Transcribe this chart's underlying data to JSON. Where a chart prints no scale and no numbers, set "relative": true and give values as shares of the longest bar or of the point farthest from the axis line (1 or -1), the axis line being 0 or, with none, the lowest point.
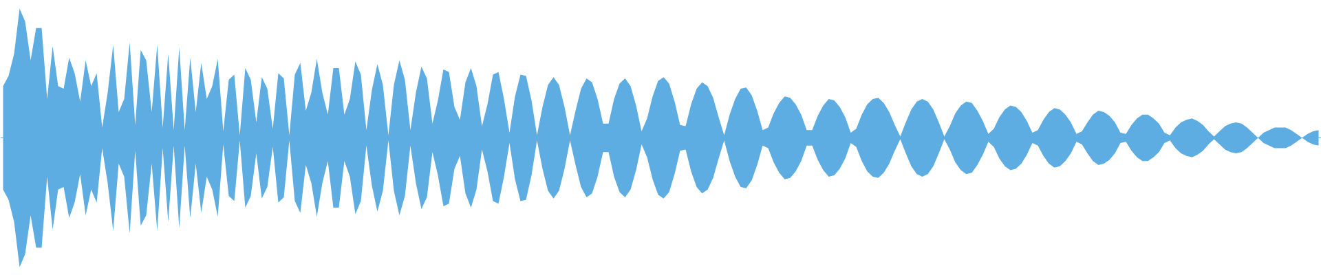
{
  "chart_data": {
    "type": "area",
    "relative": true,
    "categories": [
      null,
      null,
      null,
      null,
      null,
      null,
      null,
      null,
      null,
      null,
      null,
      null,
      null,
      null,
      null,
      null,
      null,
      null,
      null,
      null,
      null,
      null,
      null,
      null,
      null,
      null,
      null,
      null,
      null,
      null,
      null,
      null,
      null,
      null,
      null,
      null,
      null,
      null,
      null,
      null,
      null,
      null,
      null,
      null,
      null,
      null,
      null,
      null,
      null,
      null,
      null,
      null,
      null,
      null,
      null,
      null,
      null,
      null,
      null,
      null,
      null,
      null,
      null,
      null,
      null,
      null,
      null,
      null,
      null,
      null,
      null,
      null,
      null,
      null,
      null,
      null,
      null,
      null,
      null,
      null,
      null,
      null,
      null,
      null,
      null,
      null,
      null,
      null,
      null,
      null,
      null,
      null,
      null,
      null,
      null,
      null,
      null,
      null,
      null,
      null,
      null,
      null,
      null,
      null,
      null,
      null,
      null,
      null,
      null,
      null,
      null,
      null,
      null,
      null,
      null,
      null,
      null,
      null,
      null,
      null,
      null,
      null,
      null,
      null,
      null,
      null,
      null,
      null,
      null,
      null,
      null,
      null,
      null,
      null,
      null,
      null,
      null,
      null,
      null,
      null,
      null,
      null,
      null,
      null,
      null,
      null,
      null,
      null,
      null,
      null,
      null,
      null,
      null,
      null,
      null,
      null,
      null,
      null,
      null,
      null,
      null,
      null,
      null,
      null,
      null,
      null,
      null,
      null,
      null,
      null,
      null,
      null,
      null,
      null,
      null,
      null,
      null,
      null,
      null,
      null,
      null,
      null,
      null,
      null,
      null,
      null,
      null,
      null,
      null,
      null,
      null,
      null,
      null,
      null,
      null,
      null,
      null,
      null,
      null,
      null,
      null,
      null,
      null,
      null,
      null,
      null,
      null,
      null,
      null,
      null,
      null,
      null,
      null,
      null,
      null,
      null,
      null,
      null,
      null,
      null,
      null,
      null,
      null,
      null,
      null,
      null,
      null,
      null,
      null,
      null,
      null,
      null,
      null,
      null,
      null,
      null,
      null,
      null,
      null,
      null
    ],
    "ref_lines": [
      {
        "axis": "y",
        "value": 0,
        "color": "#5dade2"
      }
    ],
    "series": [
      {
        "color": "#5dade2",
        "values": [
          0.4,
          0.48,
          0.65,
          1,
          0.9,
          0.6,
          0.85,
          0.85,
          0.3,
          0.71,
          0.4,
          0.38,
          0.62,
          0.5,
          0.28,
          0.6,
          0.4,
          0.5,
          0.08,
          0.35,
          0.72,
          0.2,
          0.3,
          0.74,
          0.1,
          0.68,
          0.6,
          0.2,
          0.72,
          0.08,
          0.65,
          0.06,
          0.7,
          0.06,
          0.62,
          0.2,
          0.58,
          0.3,
          0.4,
          0.61,
          0.05,
          0.45,
          0.49,
          0.02,
          0.54,
          0.45,
          0.12,
          0.47,
          0.38,
          0.07,
          0.5,
          0.46,
          0.02,
          0.49,
          0.58,
          0.21,
          0.35,
          0.61,
          0.35,
          0.18,
          0.54,
          0.54,
          0.18,
          0.3,
          0.59,
          0.49,
          0.06,
          0.37,
          0.57,
          0.41,
          0.02,
          0.41,
          0.6,
          0.45,
          0.06,
          0.35,
          0.55,
          0.46,
          0.11,
          0.29,
          0.53,
          0.51,
          0.24,
          0.14,
          0.43,
          0.54,
          0.4,
          0.09,
          0.26,
          0.49,
          0.51,
          0.3,
          0.04,
          0.32,
          0.49,
          0.48,
          0.29,
          0.02,
          0.24,
          0.41,
          0.47,
          0.41,
          0.24,
          0.02,
          0.21,
          0.38,
          0.46,
          0.43,
          0.3,
          0.11,
          0.11,
          0.3,
          0.42,
          0.46,
          0.4,
          0.25,
          0.05,
          0.15,
          0.32,
          0.44,
          0.47,
          0.42,
          0.28,
          0.1,
          0.09,
          0.26,
          0.38,
          0.43,
          0.4,
          0.31,
          0.16,
          0.02,
          0.18,
          0.3,
          0.38,
          0.39,
          0.33,
          0.21,
          0.06,
          0.08,
          0.19,
          0.27,
          0.32,
          0.31,
          0.26,
          0.18,
          0.06,
          0.06,
          0.17,
          0.25,
          0.3,
          0.29,
          0.24,
          0.16,
          0.04,
          0.07,
          0.18,
          0.26,
          0.3,
          0.31,
          0.27,
          0.2,
          0.1,
          0.01,
          0.12,
          0.22,
          0.28,
          0.3,
          0.28,
          0.22,
          0.12,
          0.01,
          0.09,
          0.19,
          0.25,
          0.28,
          0.27,
          0.21,
          0.13,
          0.03,
          0.07,
          0.16,
          0.22,
          0.25,
          0.24,
          0.2,
          0.13,
          0.04,
          0.06,
          0.14,
          0.2,
          0.23,
          0.22,
          0.18,
          0.12,
          0.03,
          0.05,
          0.12,
          0.18,
          0.21,
          0.2,
          0.17,
          0.12,
          0.04,
          0.03,
          0.1,
          0.15,
          0.18,
          0.18,
          0.15,
          0.11,
          0.04,
          0.02,
          0.08,
          0.12,
          0.14,
          0.15,
          0.13,
          0.1,
          0.05,
          0.01,
          0.05,
          0.09,
          0.11,
          0.12,
          0.11,
          0.08,
          0.04,
          0,
          0.04,
          0.06,
          0.08,
          0.08,
          0.08,
          0.06,
          0.03,
          0,
          0.03,
          0.05,
          0.06
        ]
      },
      {
        "color": "#5dade2",
        "values": [
          -0.4,
          -0.48,
          -0.65,
          -1,
          -0.9,
          -0.6,
          -0.85,
          -0.85,
          -0.3,
          -0.71,
          -0.4,
          -0.38,
          -0.62,
          -0.5,
          -0.28,
          -0.6,
          -0.4,
          -0.5,
          -0.08,
          -0.35,
          -0.72,
          -0.2,
          -0.3,
          -0.74,
          -0.1,
          -0.68,
          -0.6,
          -0.2,
          -0.72,
          -0.08,
          -0.65,
          -0.06,
          -0.7,
          -0.06,
          -0.62,
          -0.2,
          -0.58,
          -0.3,
          -0.4,
          -0.61,
          -0.05,
          -0.45,
          -0.49,
          -0.02,
          -0.54,
          -0.45,
          -0.12,
          -0.47,
          -0.38,
          -0.07,
          -0.5,
          -0.46,
          -0.02,
          -0.49,
          -0.58,
          -0.21,
          -0.35,
          -0.61,
          -0.35,
          -0.18,
          -0.54,
          -0.54,
          -0.18,
          -0.3,
          -0.59,
          -0.49,
          -0.06,
          -0.37,
          -0.57,
          -0.41,
          -0.02,
          -0.41,
          -0.6,
          -0.45,
          -0.06,
          -0.35,
          -0.55,
          -0.46,
          -0.11,
          -0.29,
          -0.53,
          -0.51,
          -0.24,
          -0.14,
          -0.43,
          -0.54,
          -0.4,
          -0.09,
          -0.26,
          -0.49,
          -0.51,
          -0.3,
          -0.04,
          -0.32,
          -0.49,
          -0.48,
          -0.29,
          -0.02,
          -0.24,
          -0.41,
          -0.47,
          -0.41,
          -0.24,
          -0.02,
          -0.21,
          -0.38,
          -0.46,
          -0.43,
          -0.3,
          -0.11,
          -0.11,
          -0.3,
          -0.42,
          -0.46,
          -0.4,
          -0.25,
          -0.05,
          -0.15,
          -0.32,
          -0.44,
          -0.47,
          -0.42,
          -0.28,
          -0.1,
          -0.09,
          -0.26,
          -0.38,
          -0.43,
          -0.4,
          -0.31,
          -0.16,
          -0.02,
          -0.18,
          -0.3,
          -0.38,
          -0.39,
          -0.33,
          -0.21,
          -0.06,
          -0.08,
          -0.19,
          -0.27,
          -0.32,
          -0.31,
          -0.26,
          -0.18,
          -0.06,
          -0.06,
          -0.17,
          -0.25,
          -0.3,
          -0.29,
          -0.24,
          -0.16,
          -0.04,
          -0.07,
          -0.18,
          -0.26,
          -0.3,
          -0.31,
          -0.27,
          -0.2,
          -0.1,
          -0.01,
          -0.12,
          -0.22,
          -0.28,
          -0.3,
          -0.28,
          -0.22,
          -0.12,
          -0.01,
          -0.09,
          -0.19,
          -0.25,
          -0.28,
          -0.27,
          -0.21,
          -0.13,
          -0.03,
          -0.07,
          -0.16,
          -0.22,
          -0.25,
          -0.24,
          -0.2,
          -0.13,
          -0.04,
          -0.06,
          -0.14,
          -0.2,
          -0.23,
          -0.22,
          -0.18,
          -0.12,
          -0.03,
          -0.05,
          -0.12,
          -0.18,
          -0.21,
          -0.2,
          -0.17,
          -0.12,
          -0.04,
          -0.03,
          -0.1,
          -0.15,
          -0.18,
          -0.18,
          -0.15,
          -0.11,
          -0.04,
          -0.02,
          -0.08,
          -0.12,
          -0.14,
          -0.15,
          -0.13,
          -0.1,
          -0.05,
          -0.01,
          -0.05,
          -0.09,
          -0.11,
          -0.12,
          -0.11,
          -0.08,
          -0.04,
          0,
          -0.04,
          -0.06,
          -0.08,
          -0.08,
          -0.08,
          -0.06,
          -0.03,
          0,
          -0.03,
          -0.05,
          -0.06
        ]
      }
    ]
  }
}
